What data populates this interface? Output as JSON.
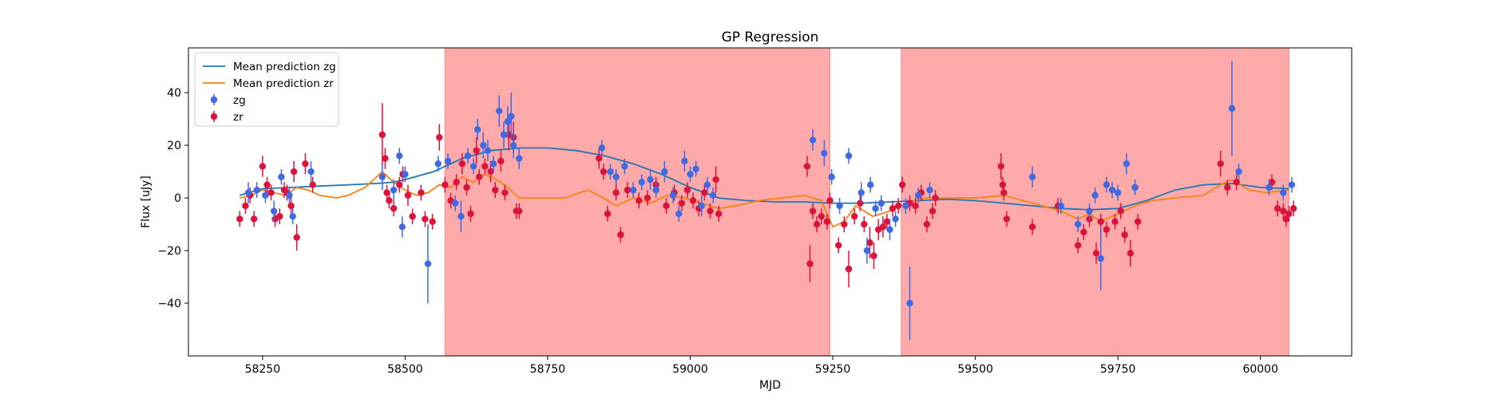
{
  "chart_data": {
    "type": "scatter",
    "title": "GP Regression",
    "xlabel": "MJD",
    "ylabel": "Flux [uJy]",
    "xlim": [
      58120,
      60160
    ],
    "ylim": [
      -60,
      57
    ],
    "xticks": [
      58250,
      58500,
      58750,
      59000,
      59250,
      59500,
      59750,
      60000
    ],
    "yticks": [
      -40,
      -20,
      0,
      20,
      40
    ],
    "grid": false,
    "legend_position": "top-left",
    "shaded_regions": [
      {
        "x_start": 58570,
        "x_end": 59245,
        "color": "#ff5555"
      },
      {
        "x_start": 59370,
        "x_end": 60050,
        "color": "#ff5555"
      }
    ],
    "lines": [
      {
        "name": "Mean prediction zg",
        "color": "#1f77b4",
        "x": [
          58210,
          58250,
          58300,
          58350,
          58400,
          58450,
          58480,
          58500,
          58550,
          58600,
          58650,
          58700,
          58750,
          58800,
          58850,
          58900,
          58950,
          59000,
          59050,
          59100,
          59150,
          59200,
          59250,
          59300,
          59350,
          59400,
          59450,
          59500,
          59550,
          59600,
          59650,
          59700,
          59750,
          59800,
          59850,
          59900,
          59950,
          60000,
          60050
        ],
        "y": [
          1,
          3.5,
          4,
          4.5,
          5,
          5.5,
          6,
          7,
          10,
          15,
          18,
          19,
          19,
          18,
          16,
          13,
          9,
          4,
          0,
          -1,
          -1.5,
          -1.5,
          -2,
          -2,
          -1.5,
          -1,
          -0.5,
          -1,
          -2,
          -3,
          -4,
          -4.5,
          -4,
          -1,
          3,
          5,
          5.5,
          4,
          3.5
        ]
      },
      {
        "name": "Mean prediction zr",
        "color": "#ff7f0e",
        "x": [
          58210,
          58230,
          58250,
          58270,
          58290,
          58310,
          58330,
          58350,
          58380,
          58400,
          58430,
          58460,
          58480,
          58500,
          58520,
          58540,
          58560,
          58580,
          58600,
          58620,
          58640,
          58660,
          58680,
          58700,
          58740,
          58780,
          58820,
          58840,
          58870,
          58900,
          58930,
          58960,
          58990,
          59020,
          59050,
          59080,
          59120,
          59160,
          59200,
          59230,
          59250,
          59270,
          59290,
          59320,
          59350,
          59380,
          59410,
          59450,
          59500,
          59550,
          59600,
          59650,
          59680,
          59700,
          59720,
          59750,
          59780,
          59810,
          59850,
          59900,
          59930,
          59950,
          59980,
          60010,
          60050
        ],
        "y": [
          0,
          1,
          3,
          2,
          1,
          4,
          3,
          1,
          0,
          1,
          4,
          10,
          6,
          3,
          1,
          2,
          5,
          4,
          8,
          6,
          9,
          7,
          4,
          0,
          0,
          0,
          3,
          1,
          -3,
          0,
          -2,
          1,
          0,
          -2,
          -4,
          -3,
          -1,
          0,
          1,
          -1,
          -11,
          -9,
          -3,
          -7,
          -5,
          -2,
          0,
          0,
          0,
          1,
          -2,
          -5,
          -8,
          -6,
          -9,
          -6,
          -3,
          -1,
          0,
          1,
          5,
          7,
          3,
          2,
          3
        ]
      }
    ],
    "series": [
      {
        "name": "zg",
        "color": "#4169e1",
        "points": [
          [
            58225,
            2,
            4
          ],
          [
            58240,
            3,
            3
          ],
          [
            58255,
            1,
            3
          ],
          [
            58270,
            -5,
            4
          ],
          [
            58283,
            8,
            3
          ],
          [
            58297,
            1,
            3
          ],
          [
            58303,
            -7,
            3
          ],
          [
            58335,
            10,
            4
          ],
          [
            58460,
            8,
            5
          ],
          [
            58480,
            3,
            4
          ],
          [
            58490,
            16,
            3
          ],
          [
            58500,
            9,
            3
          ],
          [
            58495,
            -11,
            4
          ],
          [
            58540,
            -25,
            15
          ],
          [
            58558,
            13,
            3
          ],
          [
            58575,
            14,
            3
          ],
          [
            58588,
            -2,
            3
          ],
          [
            58598,
            -7,
            6
          ],
          [
            58610,
            16,
            3
          ],
          [
            58620,
            12,
            3
          ],
          [
            58627,
            26,
            4
          ],
          [
            58637,
            20,
            5
          ],
          [
            58645,
            18,
            4
          ],
          [
            58655,
            13,
            3
          ],
          [
            58665,
            33,
            6
          ],
          [
            58673,
            24,
            5
          ],
          [
            58680,
            29,
            6
          ],
          [
            58686,
            31,
            9
          ],
          [
            58690,
            20,
            5
          ],
          [
            58700,
            15,
            4
          ],
          [
            58845,
            19,
            3
          ],
          [
            58860,
            10,
            3
          ],
          [
            58870,
            8,
            3
          ],
          [
            58885,
            12,
            3
          ],
          [
            58900,
            3,
            3
          ],
          [
            58915,
            6,
            3
          ],
          [
            58930,
            7,
            4
          ],
          [
            58940,
            3,
            3
          ],
          [
            58955,
            10,
            4
          ],
          [
            58970,
            1,
            3
          ],
          [
            58980,
            -6,
            3
          ],
          [
            58990,
            14,
            4
          ],
          [
            59000,
            9,
            3
          ],
          [
            59010,
            11,
            3
          ],
          [
            59020,
            -3,
            4
          ],
          [
            59030,
            5,
            3
          ],
          [
            59040,
            1,
            3
          ],
          [
            59215,
            22,
            4
          ],
          [
            59235,
            17,
            5
          ],
          [
            59248,
            8,
            3
          ],
          [
            59262,
            -3,
            3
          ],
          [
            59278,
            16,
            3
          ],
          [
            59300,
            2,
            4
          ],
          [
            59310,
            -20,
            5
          ],
          [
            59316,
            5,
            3
          ],
          [
            59325,
            -4,
            3
          ],
          [
            59335,
            -2,
            3
          ],
          [
            59350,
            -12,
            4
          ],
          [
            59360,
            -8,
            3
          ],
          [
            59378,
            -3,
            3
          ],
          [
            59385,
            -40,
            14
          ],
          [
            59400,
            1,
            3
          ],
          [
            59420,
            3,
            3
          ],
          [
            59600,
            8,
            4
          ],
          [
            59650,
            -3,
            3
          ],
          [
            59680,
            -10,
            3
          ],
          [
            59700,
            -5,
            3
          ],
          [
            59710,
            1,
            3
          ],
          [
            59720,
            -23,
            12
          ],
          [
            59730,
            5,
            3
          ],
          [
            59740,
            3,
            3
          ],
          [
            59750,
            2,
            3
          ],
          [
            59765,
            13,
            4
          ],
          [
            59780,
            4,
            3
          ],
          [
            59950,
            34,
            18
          ],
          [
            59962,
            10,
            3
          ],
          [
            60015,
            4,
            3
          ],
          [
            60040,
            2,
            3
          ],
          [
            60055,
            5,
            3
          ]
        ]
      },
      {
        "name": "zr",
        "color": "#dc143c",
        "points": [
          [
            58210,
            -8,
            3
          ],
          [
            58220,
            -3,
            3
          ],
          [
            58228,
            1,
            3
          ],
          [
            58235,
            -8,
            3
          ],
          [
            58250,
            12,
            4
          ],
          [
            58258,
            5,
            3
          ],
          [
            58265,
            2,
            3
          ],
          [
            58272,
            -8,
            3
          ],
          [
            58280,
            -7,
            3
          ],
          [
            58288,
            3,
            3
          ],
          [
            58293,
            2,
            3
          ],
          [
            58300,
            -3,
            3
          ],
          [
            58305,
            10,
            4
          ],
          [
            58310,
            -15,
            5
          ],
          [
            58325,
            13,
            4
          ],
          [
            58338,
            5,
            3
          ],
          [
            58460,
            24,
            12
          ],
          [
            58465,
            15,
            4
          ],
          [
            58468,
            2,
            3
          ],
          [
            58472,
            -1,
            3
          ],
          [
            58480,
            -4,
            3
          ],
          [
            58490,
            5,
            3
          ],
          [
            58496,
            9,
            3
          ],
          [
            58505,
            1,
            4
          ],
          [
            58513,
            -7,
            3
          ],
          [
            58528,
            2,
            3
          ],
          [
            58535,
            -8,
            3
          ],
          [
            58548,
            -9,
            3
          ],
          [
            58560,
            23,
            5
          ],
          [
            58570,
            5,
            3
          ],
          [
            58580,
            -1,
            3
          ],
          [
            58590,
            6,
            3
          ],
          [
            58600,
            13,
            4
          ],
          [
            58608,
            4,
            3
          ],
          [
            58615,
            -6,
            3
          ],
          [
            58625,
            18,
            5
          ],
          [
            58630,
            8,
            3
          ],
          [
            58640,
            12,
            3
          ],
          [
            58650,
            10,
            4
          ],
          [
            58658,
            3,
            3
          ],
          [
            58668,
            14,
            4
          ],
          [
            58675,
            2,
            3
          ],
          [
            58682,
            24,
            6
          ],
          [
            58690,
            23,
            6
          ],
          [
            58695,
            -5,
            3
          ],
          [
            58700,
            -5,
            3
          ],
          [
            58840,
            15,
            4
          ],
          [
            58848,
            10,
            3
          ],
          [
            58855,
            -6,
            3
          ],
          [
            58870,
            2,
            3
          ],
          [
            58878,
            -14,
            3
          ],
          [
            58890,
            3,
            3
          ],
          [
            58910,
            -1,
            3
          ],
          [
            58925,
            0,
            3
          ],
          [
            58940,
            5,
            3
          ],
          [
            58958,
            -3,
            3
          ],
          [
            58972,
            2,
            3
          ],
          [
            58985,
            -2,
            3
          ],
          [
            58995,
            3,
            3
          ],
          [
            59005,
            -1,
            3
          ],
          [
            59015,
            -4,
            3
          ],
          [
            59025,
            2,
            3
          ],
          [
            59035,
            -5,
            3
          ],
          [
            59045,
            7,
            5
          ],
          [
            59050,
            -6,
            3
          ],
          [
            59205,
            12,
            4
          ],
          [
            59210,
            -25,
            7
          ],
          [
            59215,
            -5,
            3
          ],
          [
            59222,
            -10,
            3
          ],
          [
            59230,
            -7,
            3
          ],
          [
            59240,
            -9,
            3
          ],
          [
            59245,
            -1,
            3
          ],
          [
            59260,
            -18,
            3
          ],
          [
            59270,
            -10,
            3
          ],
          [
            59278,
            -27,
            7
          ],
          [
            59288,
            -7,
            3
          ],
          [
            59298,
            -2,
            3
          ],
          [
            59305,
            -10,
            3
          ],
          [
            59315,
            -17,
            6
          ],
          [
            59322,
            -22,
            5
          ],
          [
            59330,
            -12,
            4
          ],
          [
            59338,
            -11,
            4
          ],
          [
            59345,
            -9,
            3
          ],
          [
            59355,
            -4,
            3
          ],
          [
            59365,
            -3,
            3
          ],
          [
            59372,
            5,
            3
          ],
          [
            59385,
            -2,
            3
          ],
          [
            59395,
            -3,
            3
          ],
          [
            59405,
            2,
            3
          ],
          [
            59415,
            -10,
            3
          ],
          [
            59425,
            -5,
            3
          ],
          [
            59430,
            0,
            3
          ],
          [
            59545,
            12,
            5
          ],
          [
            59548,
            5,
            3
          ],
          [
            59550,
            2,
            3
          ],
          [
            59555,
            -8,
            3
          ],
          [
            59600,
            -11,
            3
          ],
          [
            59645,
            -3,
            3
          ],
          [
            59680,
            -18,
            3
          ],
          [
            59690,
            -13,
            3
          ],
          [
            59700,
            -8,
            3
          ],
          [
            59712,
            -21,
            4
          ],
          [
            59720,
            -9,
            3
          ],
          [
            59730,
            -12,
            3
          ],
          [
            59745,
            -9,
            3
          ],
          [
            59755,
            -5,
            3
          ],
          [
            59762,
            -14,
            3
          ],
          [
            59772,
            -21,
            5
          ],
          [
            59785,
            -9,
            3
          ],
          [
            59930,
            13,
            5
          ],
          [
            59942,
            4,
            3
          ],
          [
            59958,
            6,
            3
          ],
          [
            60020,
            6,
            3
          ],
          [
            60030,
            -4,
            3
          ],
          [
            60040,
            -5,
            3
          ],
          [
            60045,
            -8,
            3
          ],
          [
            60050,
            -6,
            3
          ],
          [
            60058,
            -4,
            3
          ]
        ]
      }
    ]
  }
}
